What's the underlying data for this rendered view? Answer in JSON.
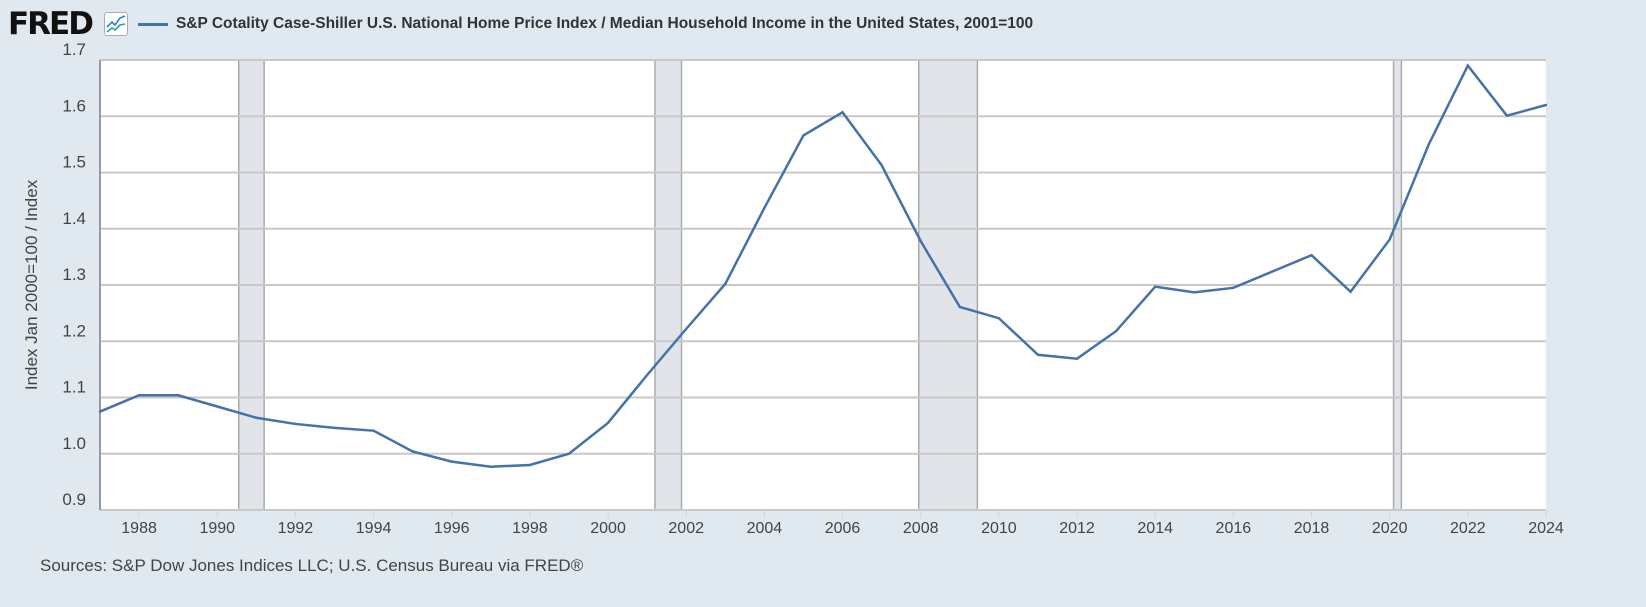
{
  "header": {
    "logo": "FRED",
    "logo_icon": "line-chart-icon"
  },
  "colors": {
    "series": "#4572a7",
    "background": "#e1e9f0",
    "recession": "#e1e5ea",
    "grid": "#c8c8c8"
  },
  "chart_data": {
    "type": "line",
    "title": "S&P Cotality Case-Shiller U.S. National Home Price Index / Median Household Income in the United States, 2001=100",
    "xlabel": "",
    "ylabel": "Index Jan 2000=100 / Index",
    "xlim": [
      1987,
      2024
    ],
    "ylim": [
      0.9,
      1.7
    ],
    "grid": true,
    "legend": "top-left",
    "x_ticks": [
      "1988",
      "1990",
      "1992",
      "1994",
      "1996",
      "1998",
      "2000",
      "2002",
      "2004",
      "2006",
      "2008",
      "2010",
      "2012",
      "2014",
      "2016",
      "2018",
      "2020",
      "2022",
      "2024"
    ],
    "y_ticks": [
      "0.9",
      "1.0",
      "1.1",
      "1.2",
      "1.3",
      "1.4",
      "1.5",
      "1.6",
      "1.7"
    ],
    "recessions": [
      [
        1990.55,
        1991.2
      ],
      [
        2001.2,
        2001.88
      ],
      [
        2007.95,
        2009.45
      ],
      [
        2020.1,
        2020.3
      ]
    ],
    "x": [
      1987,
      1988,
      1989,
      1990,
      1991,
      1992,
      1993,
      1994,
      1995,
      1996,
      1997,
      1998,
      1999,
      2000,
      2001,
      2002,
      2003,
      2004,
      2005,
      2006,
      2007,
      2008,
      2009,
      2010,
      2011,
      2012,
      2013,
      2014,
      2015,
      2016,
      2017,
      2018,
      2019,
      2020,
      2021,
      2022,
      2023,
      2024
    ],
    "series": [
      {
        "name": "S&P Cotality Case-Shiller U.S. National Home Price Index / Median Household Income in the United States, 2001=100",
        "values": [
          1.075,
          1.104,
          1.104,
          1.084,
          1.064,
          1.053,
          1.046,
          1.041,
          1.004,
          0.986,
          0.977,
          0.98,
          1.0,
          1.055,
          1.14,
          1.222,
          1.302,
          1.437,
          1.566,
          1.607,
          1.513,
          1.378,
          1.261,
          1.241,
          1.176,
          1.169,
          1.218,
          1.297,
          1.287,
          1.295,
          1.324,
          1.353,
          1.288,
          1.381,
          1.55,
          1.69,
          1.601,
          1.62
        ]
      }
    ]
  },
  "footer": {
    "sources": "Sources: S&P Dow Jones Indices LLC; U.S. Census Bureau via FRED®"
  }
}
